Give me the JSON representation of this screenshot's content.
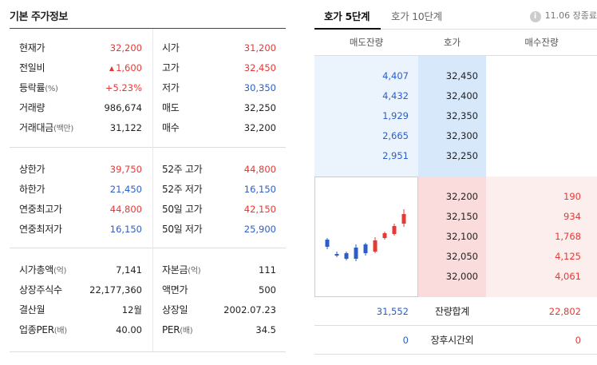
{
  "left": {
    "title": "기본 주가정보",
    "rows": [
      {
        "l1": "현재가",
        "u1": "",
        "v1": "32,200",
        "c1": "up",
        "tri1": "",
        "l2": "시가",
        "u2": "",
        "v2": "31,200",
        "c2": "up"
      },
      {
        "l1": "전일비",
        "u1": "",
        "v1": "1,600",
        "c1": "up",
        "tri1": "▲",
        "l2": "고가",
        "u2": "",
        "v2": "32,450",
        "c2": "up"
      },
      {
        "l1": "등락률",
        "u1": "(%)",
        "v1": "+5.23%",
        "c1": "up",
        "tri1": "",
        "l2": "저가",
        "u2": "",
        "v2": "30,350",
        "c2": "down"
      },
      {
        "l1": "거래량",
        "u1": "",
        "v1": "986,674",
        "c1": "flat",
        "tri1": "",
        "l2": "매도",
        "u2": "",
        "v2": "32,250",
        "c2": "flat"
      },
      {
        "l1": "거래대금",
        "u1": "(백만)",
        "v1": "31,122",
        "c1": "flat",
        "tri1": "",
        "l2": "매수",
        "u2": "",
        "v2": "32,200",
        "c2": "flat"
      },
      {
        "l1": "상한가",
        "u1": "",
        "v1": "39,750",
        "c1": "up",
        "tri1": "",
        "l2": "52주 고가",
        "u2": "",
        "v2": "44,800",
        "c2": "up"
      },
      {
        "l1": "하한가",
        "u1": "",
        "v1": "21,450",
        "c1": "down",
        "tri1": "",
        "l2": "52주 저가",
        "u2": "",
        "v2": "16,150",
        "c2": "down"
      },
      {
        "l1": "연중최고가",
        "u1": "",
        "v1": "44,800",
        "c1": "up",
        "tri1": "",
        "l2": "50일 고가",
        "u2": "",
        "v2": "42,150",
        "c2": "up"
      },
      {
        "l1": "연중최저가",
        "u1": "",
        "v1": "16,150",
        "c1": "down",
        "tri1": "",
        "l2": "50일 저가",
        "u2": "",
        "v2": "25,900",
        "c2": "down"
      },
      {
        "l1": "시가총액",
        "u1": "(억)",
        "v1": "7,141",
        "c1": "flat",
        "tri1": "",
        "l2": "자본금",
        "u2": "(억)",
        "v2": "111",
        "c2": "flat"
      },
      {
        "l1": "상장주식수",
        "u1": "",
        "v1": "22,177,360",
        "c1": "flat",
        "tri1": "",
        "l2": "액면가",
        "u2": "",
        "v2": "500",
        "c2": "flat"
      },
      {
        "l1": "결산월",
        "u1": "",
        "v1": "12월",
        "c1": "flat",
        "tri1": "",
        "l2": "상장일",
        "u2": "",
        "v2": "2002.07.23",
        "c2": "flat"
      },
      {
        "l1": "업종PER",
        "u1": "(배)",
        "v1": "40.00",
        "c1": "flat",
        "tri1": "",
        "l2": "PER",
        "u2": "(배)",
        "v2": "34.5",
        "c2": "flat"
      }
    ]
  },
  "orderbook": {
    "tabs": [
      "호가 5단계",
      "호가 10단계"
    ],
    "time_info": "11.06 장종료",
    "headers": {
      "ask": "매도잔량",
      "price": "호가",
      "bid": "매수잔량"
    },
    "asks": [
      {
        "vol": "4,407",
        "price": "32,450"
      },
      {
        "vol": "4,432",
        "price": "32,400"
      },
      {
        "vol": "1,929",
        "price": "32,350"
      },
      {
        "vol": "2,665",
        "price": "32,300"
      },
      {
        "vol": "2,951",
        "price": "32,250"
      }
    ],
    "bids": [
      {
        "vol": "190",
        "price": "32,200"
      },
      {
        "vol": "934",
        "price": "32,150"
      },
      {
        "vol": "1,768",
        "price": "32,100"
      },
      {
        "vol": "4,125",
        "price": "32,050"
      },
      {
        "vol": "4,061",
        "price": "32,000"
      }
    ],
    "total": {
      "ask": "31,552",
      "label": "잔량합계",
      "bid": "22,802"
    },
    "after_hours": {
      "ask": "0",
      "label": "장후시간외",
      "bid": "0"
    }
  },
  "colors": {
    "up": "#e53935",
    "down": "#2c5ec8",
    "ask_bg": "#ebf3fd",
    "bid_bg": "#fdeeee"
  }
}
